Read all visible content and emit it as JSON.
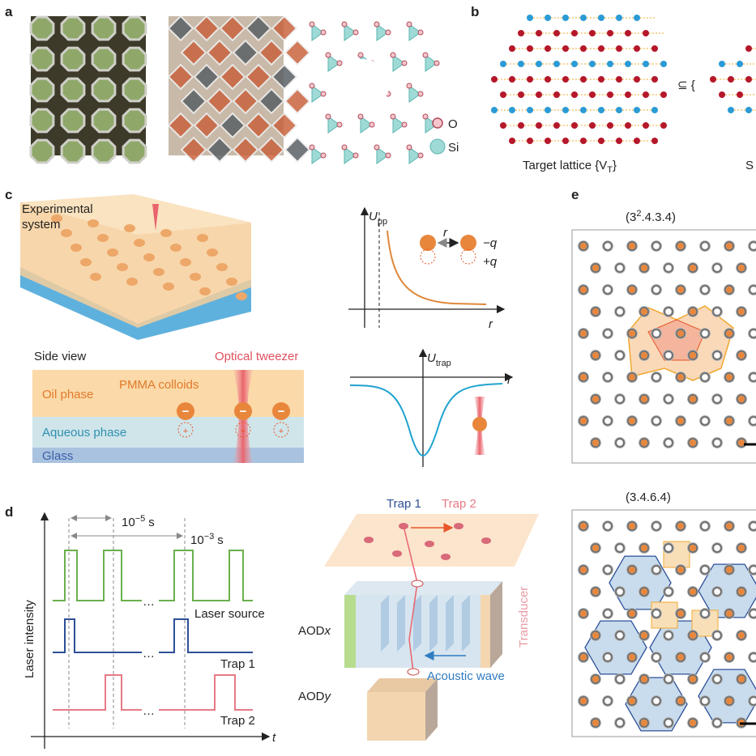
{
  "labels": {
    "a": "a",
    "b": "b",
    "c": "c",
    "d": "d",
    "e": "e"
  },
  "panel_a": {
    "oxygen": "O",
    "silicon": "Si"
  },
  "panel_b": {
    "caption": {
      "before": "Target lattice {V",
      "sub": "T",
      "after": "}"
    },
    "subset": "⊆ {",
    "truncated": "S"
  },
  "panel_c": {
    "system": [
      "Experimental",
      "system"
    ],
    "potential": {
      "symbol": "U",
      "sub": "pp"
    },
    "distance": "r",
    "charge_neg": "−q",
    "charge_pos": "+q",
    "axis_r": "r",
    "side_view": "Side view",
    "tweezer": "Optical tweezer",
    "colloids": "PMMA colloids",
    "oil": "Oil phase",
    "aqueous": "Aqueous phase",
    "glass": "Glass",
    "charges": [
      [
        "−",
        "+"
      ],
      [
        "−",
        "+"
      ],
      [
        "−",
        "+"
      ]
    ],
    "trap_potential": {
      "symbol": "U",
      "sub": "trap"
    },
    "trap_axis": "r"
  },
  "panel_d": {
    "short_period": {
      "base": "10",
      "exp": "−5",
      "unit": "s"
    },
    "long_period": {
      "base": "10",
      "exp": "−3",
      "unit": "s"
    },
    "y_axis": "Laser intensity",
    "x_axis": "t",
    "ellipses": [
      "…",
      "…",
      "…"
    ],
    "traces": [
      "Laser source",
      "Trap 1",
      "Trap 2"
    ],
    "planes": [
      "Trap 1",
      "Trap 2"
    ],
    "aod_x": {
      "main": "AOD",
      "italic": "x"
    },
    "aod_y": {
      "main": "AOD",
      "italic": "y"
    },
    "transducer": "Transducer",
    "acoustic": "Acoustic wave"
  },
  "panel_e": {
    "top": {
      "open": "(3",
      "sup": "2",
      "rest": ".4.3.4)"
    },
    "bottom": "(3.4.6.4)"
  }
}
